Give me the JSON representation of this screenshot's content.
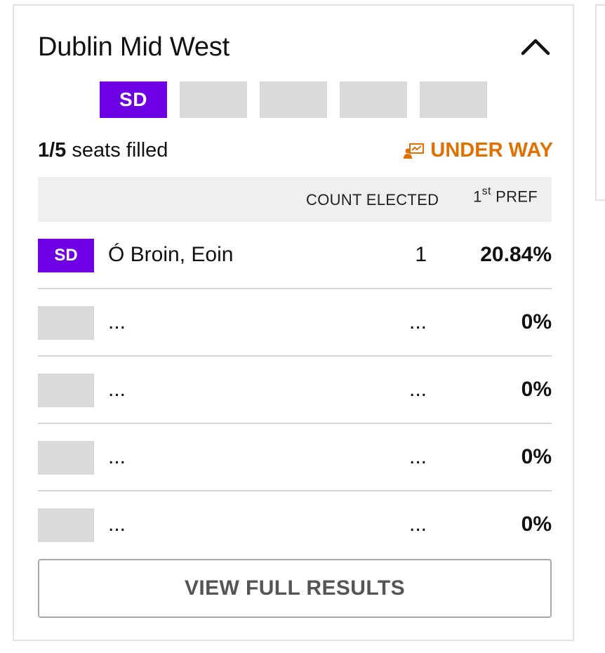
{
  "constituency": {
    "name": "Dublin Mid West"
  },
  "seats": {
    "total": 5,
    "filled": 1,
    "boxes": [
      {
        "party": "SD",
        "color": "#6e00e6"
      },
      {
        "party": ""
      },
      {
        "party": ""
      },
      {
        "party": ""
      },
      {
        "party": ""
      }
    ],
    "filled_count_text": "1/5",
    "filled_suffix": "seats filled"
  },
  "status": {
    "label": "UNDER WAY",
    "icon": "count-in-progress-icon",
    "color": "#e07000"
  },
  "table": {
    "header_count": "COUNT ELECTED",
    "header_pref_num": "1",
    "header_pref_sup": "st",
    "header_pref_label": "PREF",
    "rows": [
      {
        "party": "SD",
        "name": "Ó Broin, Eoin",
        "count": "1",
        "pref": "20.84%"
      },
      {
        "party": "",
        "name": "...",
        "count": "...",
        "pref": "0%"
      },
      {
        "party": "",
        "name": "...",
        "count": "...",
        "pref": "0%"
      },
      {
        "party": "",
        "name": "...",
        "count": "...",
        "pref": "0%"
      },
      {
        "party": "",
        "name": "...",
        "count": "...",
        "pref": "0%"
      }
    ]
  },
  "actions": {
    "view_full_results": "VIEW FULL RESULTS"
  }
}
